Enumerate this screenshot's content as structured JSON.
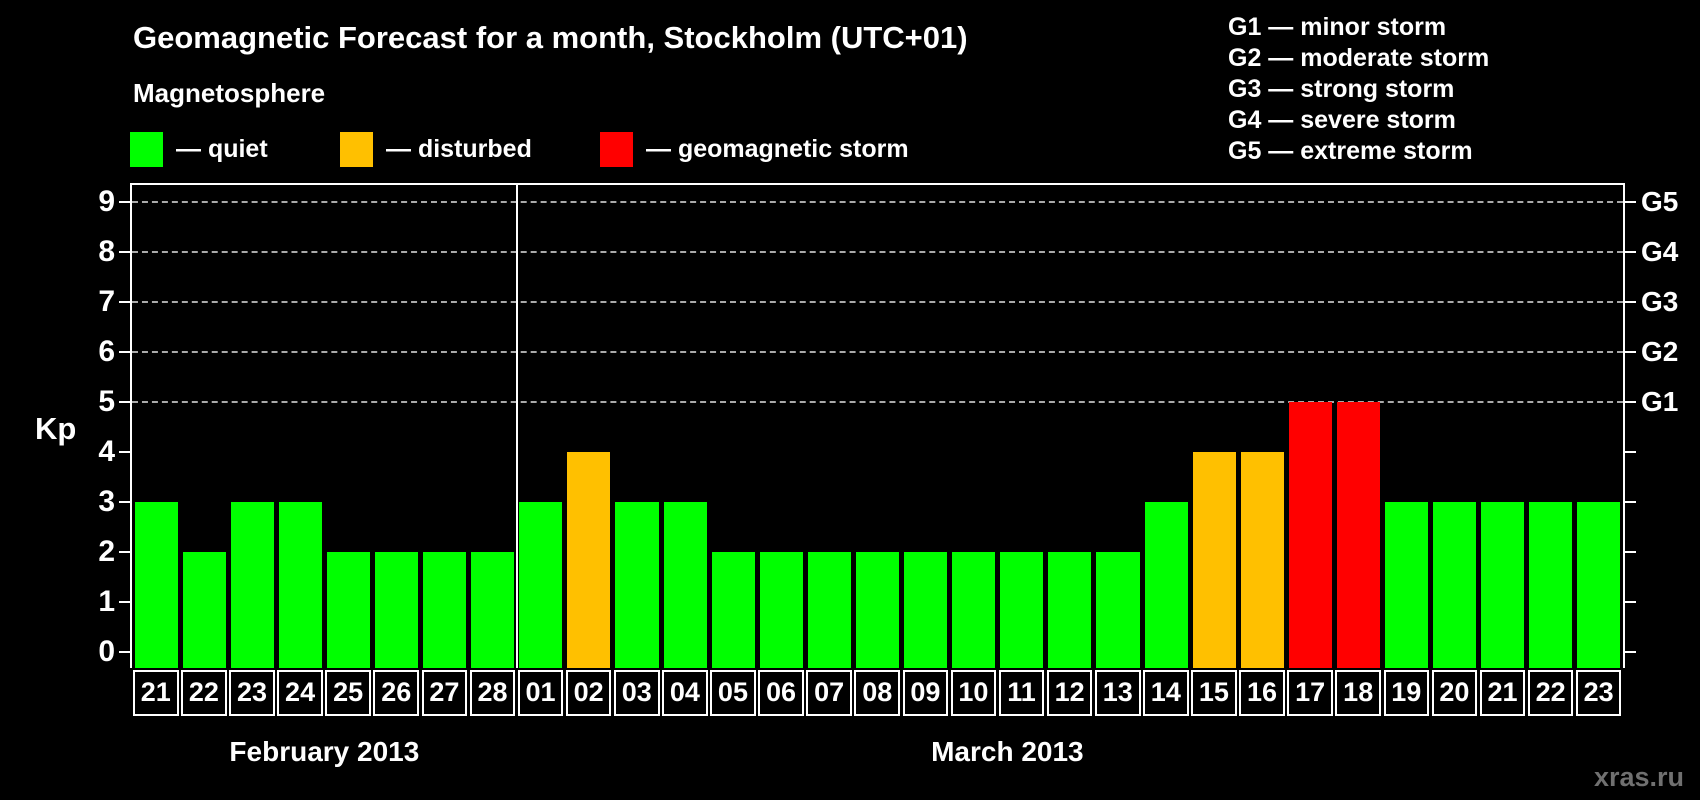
{
  "header": {
    "title": "Geomagnetic Forecast for a month, Stockholm (UTC+01)",
    "subtitle": "Magnetosphere"
  },
  "legend": {
    "items": [
      {
        "name": "quiet",
        "label": "— quiet",
        "color": "#00ff00"
      },
      {
        "name": "disturbed",
        "label": "— disturbed",
        "color": "#ffc000"
      },
      {
        "name": "storm",
        "label": "— geomagnetic storm",
        "color": "#ff0000"
      }
    ]
  },
  "g_legend": {
    "items": [
      "G1 — minor storm",
      "G2 — moderate storm",
      "G3 — strong storm",
      "G4 — severe storm",
      "G5 — extreme storm"
    ]
  },
  "chart_data": {
    "type": "bar",
    "title": "Geomagnetic Forecast for a month, Stockholm (UTC+01)",
    "ylabel": "Kp",
    "ylim": [
      0,
      9
    ],
    "y_ticks": [
      0,
      1,
      2,
      3,
      4,
      5,
      6,
      7,
      8,
      9
    ],
    "gridlines_at": [
      5,
      6,
      7,
      8,
      9
    ],
    "grid": "dashed",
    "right_axis_labels": [
      {
        "kp": 5,
        "label": "G1"
      },
      {
        "kp": 6,
        "label": "G2"
      },
      {
        "kp": 7,
        "label": "G3"
      },
      {
        "kp": 8,
        "label": "G4"
      },
      {
        "kp": 9,
        "label": "G5"
      }
    ],
    "status_colors": {
      "quiet": "#00ff00",
      "disturbed": "#ffc000",
      "storm": "#ff0000"
    },
    "months": [
      {
        "label": "February 2013",
        "day_count": 8
      },
      {
        "label": "March 2013",
        "day_count": 23
      }
    ],
    "points": [
      {
        "day": "21",
        "month": "February 2013",
        "value": 3,
        "status": "quiet"
      },
      {
        "day": "22",
        "month": "February 2013",
        "value": 2,
        "status": "quiet"
      },
      {
        "day": "23",
        "month": "February 2013",
        "value": 3,
        "status": "quiet"
      },
      {
        "day": "24",
        "month": "February 2013",
        "value": 3,
        "status": "quiet"
      },
      {
        "day": "25",
        "month": "February 2013",
        "value": 2,
        "status": "quiet"
      },
      {
        "day": "26",
        "month": "February 2013",
        "value": 2,
        "status": "quiet"
      },
      {
        "day": "27",
        "month": "February 2013",
        "value": 2,
        "status": "quiet"
      },
      {
        "day": "28",
        "month": "February 2013",
        "value": 2,
        "status": "quiet"
      },
      {
        "day": "01",
        "month": "March 2013",
        "value": 3,
        "status": "quiet"
      },
      {
        "day": "02",
        "month": "March 2013",
        "value": 4,
        "status": "disturbed"
      },
      {
        "day": "03",
        "month": "March 2013",
        "value": 3,
        "status": "quiet"
      },
      {
        "day": "04",
        "month": "March 2013",
        "value": 3,
        "status": "quiet"
      },
      {
        "day": "05",
        "month": "March 2013",
        "value": 2,
        "status": "quiet"
      },
      {
        "day": "06",
        "month": "March 2013",
        "value": 2,
        "status": "quiet"
      },
      {
        "day": "07",
        "month": "March 2013",
        "value": 2,
        "status": "quiet"
      },
      {
        "day": "08",
        "month": "March 2013",
        "value": 2,
        "status": "quiet"
      },
      {
        "day": "09",
        "month": "March 2013",
        "value": 2,
        "status": "quiet"
      },
      {
        "day": "10",
        "month": "March 2013",
        "value": 2,
        "status": "quiet"
      },
      {
        "day": "11",
        "month": "March 2013",
        "value": 2,
        "status": "quiet"
      },
      {
        "day": "12",
        "month": "March 2013",
        "value": 2,
        "status": "quiet"
      },
      {
        "day": "13",
        "month": "March 2013",
        "value": 2,
        "status": "quiet"
      },
      {
        "day": "14",
        "month": "March 2013",
        "value": 3,
        "status": "quiet"
      },
      {
        "day": "15",
        "month": "March 2013",
        "value": 4,
        "status": "disturbed"
      },
      {
        "day": "16",
        "month": "March 2013",
        "value": 4,
        "status": "disturbed"
      },
      {
        "day": "17",
        "month": "March 2013",
        "value": 5,
        "status": "storm"
      },
      {
        "day": "18",
        "month": "March 2013",
        "value": 5,
        "status": "storm"
      },
      {
        "day": "19",
        "month": "March 2013",
        "value": 3,
        "status": "quiet"
      },
      {
        "day": "20",
        "month": "March 2013",
        "value": 3,
        "status": "quiet"
      },
      {
        "day": "21",
        "month": "March 2013",
        "value": 3,
        "status": "quiet"
      },
      {
        "day": "22",
        "month": "March 2013",
        "value": 3,
        "status": "quiet"
      },
      {
        "day": "23",
        "month": "March 2013",
        "value": 3,
        "status": "quiet"
      }
    ]
  },
  "watermark": "xras.ru"
}
